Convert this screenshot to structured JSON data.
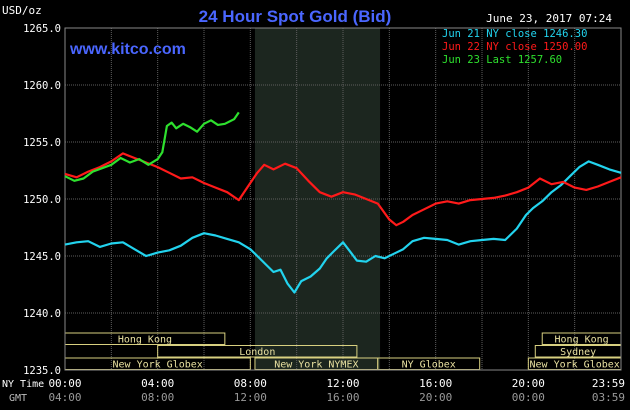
{
  "header": {
    "title": "24 Hour Spot Gold (Bid)",
    "unit": "USD/oz",
    "datetime": "June 23, 2017 07:24",
    "site": "www.kitco.com"
  },
  "legend": [
    {
      "text": "Jun 21 NY close 1246.30",
      "color": "#22d3ee"
    },
    {
      "text": "Jun 22 NY close 1250.00",
      "color": "#ff1a1a"
    },
    {
      "text": "Jun 23 Last 1257.60",
      "color": "#2ee02e"
    }
  ],
  "labels": {
    "row_ny": "NY Time",
    "row_gmt": "GMT",
    "ny_ticks": [
      "00:00",
      "04:00",
      "08:00",
      "12:00",
      "16:00",
      "20:00",
      "23:59"
    ],
    "gmt_ticks": [
      "04:00",
      "08:00",
      "12:00",
      "16:00",
      "20:00",
      "00:00",
      "03:59"
    ]
  },
  "sessions": [
    {
      "name": "Hong Kong",
      "row": 0,
      "start": 0,
      "end": 6.9
    },
    {
      "name": "Hong Kong",
      "row": 0,
      "start": 20.6,
      "end": 24
    },
    {
      "name": "London",
      "row": 1,
      "start": 4,
      "end": 12.6
    },
    {
      "name": "Sydney",
      "row": 1,
      "start": 20.3,
      "end": 24
    },
    {
      "name": "New York Globex",
      "row": 2,
      "start": 0,
      "end": 8
    },
    {
      "name": "New York NYMEX",
      "row": 2,
      "start": 8.2,
      "end": 13.5
    },
    {
      "name": "NY Globex",
      "row": 2,
      "start": 13.5,
      "end": 17.9
    },
    {
      "name": "New York Globex",
      "row": 2,
      "start": 20,
      "end": 24
    }
  ],
  "chart_data": {
    "type": "line",
    "title": "24 Hour Spot Gold (Bid)",
    "ylabel": "USD/oz",
    "xlabel": "NY Time",
    "ylim": [
      1235,
      1265
    ],
    "xlim": [
      0,
      24
    ],
    "y_ticks": [
      "1265.0",
      "1260.0",
      "1255.0",
      "1250.0",
      "1245.0",
      "1240.0",
      "1235.0"
    ],
    "y_tick_values": [
      1265,
      1260,
      1255,
      1250,
      1245,
      1240,
      1235
    ],
    "grid": true,
    "shaded_range": [
      8.2,
      13.6
    ],
    "series": [
      {
        "name": "Jun 21 NY close 1246.30",
        "color": "#22d3ee",
        "x": [
          0,
          0.5,
          1,
          1.5,
          2,
          2.5,
          3,
          3.5,
          4,
          4.5,
          5,
          5.5,
          6,
          6.5,
          7,
          7.5,
          8,
          8.3,
          8.7,
          9,
          9.3,
          9.6,
          9.9,
          10.2,
          10.6,
          11,
          11.3,
          11.6,
          11.9,
          12,
          12.3,
          12.6,
          13,
          13.4,
          13.8,
          14.2,
          14.6,
          15,
          15.5,
          16,
          16.5,
          17,
          17.5,
          18,
          18.5,
          19,
          19.5,
          19.9,
          20.2,
          20.6,
          21,
          21.4,
          21.8,
          22.2,
          22.6,
          23,
          23.5,
          24
        ],
        "values": [
          1246.0,
          1246.2,
          1246.3,
          1245.8,
          1246.1,
          1246.2,
          1245.6,
          1245.0,
          1245.3,
          1245.5,
          1245.9,
          1246.6,
          1247.0,
          1246.8,
          1246.5,
          1246.2,
          1245.6,
          1245.0,
          1244.2,
          1243.6,
          1243.8,
          1242.6,
          1241.8,
          1242.8,
          1243.2,
          1243.9,
          1244.8,
          1245.4,
          1246.0,
          1246.2,
          1245.4,
          1244.6,
          1244.5,
          1245.0,
          1244.8,
          1245.2,
          1245.6,
          1246.3,
          1246.6,
          1246.5,
          1246.4,
          1246.0,
          1246.3,
          1246.4,
          1246.5,
          1246.4,
          1247.4,
          1248.6,
          1249.2,
          1249.8,
          1250.6,
          1251.2,
          1252.0,
          1252.8,
          1253.3,
          1253.0,
          1252.6,
          1252.3
        ]
      },
      {
        "name": "Jun 22 NY close 1250.00",
        "color": "#ff1a1a",
        "x": [
          0,
          0.5,
          1,
          1.5,
          2,
          2.5,
          3,
          3.5,
          4,
          4.5,
          5,
          5.5,
          6,
          6.5,
          7,
          7.5,
          8,
          8.3,
          8.6,
          9,
          9.5,
          10,
          10.5,
          11,
          11.5,
          12,
          12.5,
          13,
          13.5,
          14,
          14.3,
          14.6,
          15,
          15.5,
          16,
          16.5,
          17,
          17.5,
          18,
          18.5,
          19,
          19.5,
          20,
          20.5,
          21,
          21.5,
          22,
          22.5,
          23,
          23.5,
          24
        ],
        "values": [
          1252.2,
          1251.9,
          1252.4,
          1252.8,
          1253.3,
          1254.0,
          1253.6,
          1253.2,
          1252.8,
          1252.3,
          1251.8,
          1251.9,
          1251.4,
          1251.0,
          1250.6,
          1249.9,
          1251.4,
          1252.3,
          1253.0,
          1252.6,
          1253.1,
          1252.7,
          1251.6,
          1250.6,
          1250.2,
          1250.6,
          1250.4,
          1250.0,
          1249.6,
          1248.2,
          1247.7,
          1248.0,
          1248.6,
          1249.1,
          1249.6,
          1249.8,
          1249.6,
          1249.9,
          1250.0,
          1250.1,
          1250.3,
          1250.6,
          1251.0,
          1251.8,
          1251.3,
          1251.5,
          1251.0,
          1250.8,
          1251.1,
          1251.5,
          1251.9
        ]
      },
      {
        "name": "Jun 23 Last 1257.60",
        "color": "#2ee02e",
        "x": [
          0,
          0.4,
          0.8,
          1.2,
          1.6,
          2,
          2.4,
          2.8,
          3.2,
          3.6,
          4,
          4.2,
          4.4,
          4.6,
          4.8,
          5.1,
          5.4,
          5.7,
          6,
          6.3,
          6.6,
          6.9,
          7.1,
          7.3,
          7.5
        ],
        "values": [
          1252.0,
          1251.6,
          1251.8,
          1252.4,
          1252.7,
          1253.0,
          1253.6,
          1253.2,
          1253.5,
          1253.0,
          1253.5,
          1254.1,
          1256.4,
          1256.7,
          1256.2,
          1256.6,
          1256.3,
          1255.9,
          1256.6,
          1256.9,
          1256.5,
          1256.6,
          1256.8,
          1257.0,
          1257.6
        ]
      }
    ]
  }
}
